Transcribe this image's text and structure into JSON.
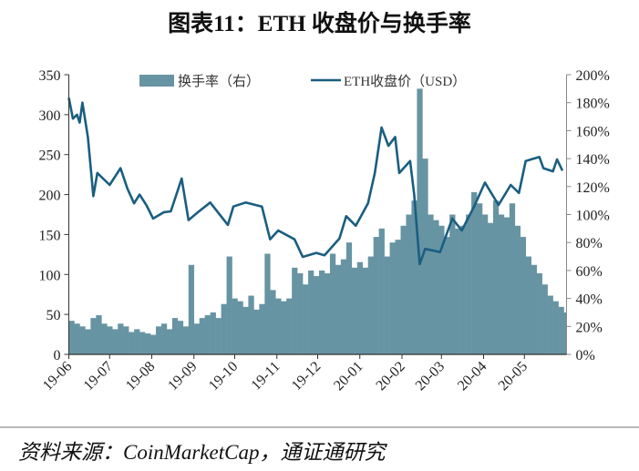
{
  "title": "图表11：ETH 收盘价与换手率",
  "source": "资料来源：CoinMarketCap，通证通研究",
  "colors": {
    "turnover": "#6794a3",
    "price": "#1a5e80",
    "axis": "#333333"
  },
  "chart_data": {
    "type": "bar+line",
    "x_tick_labels": [
      "19-06",
      "19-07",
      "19-08",
      "19-09",
      "19-10",
      "19-11",
      "19-12",
      "20-01",
      "20-02",
      "20-03",
      "20-04",
      "20-05"
    ],
    "x_range": [
      "2019-06-01",
      "2020-06-01"
    ],
    "left_axis": {
      "ticks": [
        "0",
        "50",
        "100",
        "150",
        "200",
        "250",
        "300",
        "350"
      ],
      "range": [
        0,
        350
      ]
    },
    "right_axis": {
      "ticks": [
        "0%",
        "20%",
        "40%",
        "60%",
        "80%",
        "100%",
        "120%",
        "140%",
        "160%",
        "180%",
        "200%"
      ],
      "range": [
        0,
        200
      ]
    },
    "legend": [
      "换手率（右）",
      "ETH收盘价（USD）"
    ],
    "legend_position": "top",
    "grid": false,
    "series": [
      {
        "name": "换手率（右）",
        "type": "bar",
        "axis": "right",
        "unit": "%",
        "points": [
          [
            "2019-06-01",
            24
          ],
          [
            "2019-06-05",
            22
          ],
          [
            "2019-06-09",
            20
          ],
          [
            "2019-06-13",
            18
          ],
          [
            "2019-06-17",
            26
          ],
          [
            "2019-06-21",
            28
          ],
          [
            "2019-06-25",
            22
          ],
          [
            "2019-06-29",
            20
          ],
          [
            "2019-07-03",
            18
          ],
          [
            "2019-07-07",
            22
          ],
          [
            "2019-07-11",
            20
          ],
          [
            "2019-07-15",
            16
          ],
          [
            "2019-07-19",
            18
          ],
          [
            "2019-07-23",
            16
          ],
          [
            "2019-07-27",
            15
          ],
          [
            "2019-07-31",
            14
          ],
          [
            "2019-08-04",
            20
          ],
          [
            "2019-08-08",
            22
          ],
          [
            "2019-08-12",
            18
          ],
          [
            "2019-08-16",
            26
          ],
          [
            "2019-08-20",
            24
          ],
          [
            "2019-08-24",
            20
          ],
          [
            "2019-08-28",
            64
          ],
          [
            "2019-09-01",
            22
          ],
          [
            "2019-09-05",
            26
          ],
          [
            "2019-09-09",
            28
          ],
          [
            "2019-09-13",
            30
          ],
          [
            "2019-09-17",
            26
          ],
          [
            "2019-09-21",
            36
          ],
          [
            "2019-09-25",
            70
          ],
          [
            "2019-09-29",
            40
          ],
          [
            "2019-10-03",
            38
          ],
          [
            "2019-10-07",
            34
          ],
          [
            "2019-10-11",
            42
          ],
          [
            "2019-10-15",
            32
          ],
          [
            "2019-10-19",
            36
          ],
          [
            "2019-10-23",
            72
          ],
          [
            "2019-10-27",
            46
          ],
          [
            "2019-10-31",
            40
          ],
          [
            "2019-11-04",
            38
          ],
          [
            "2019-11-08",
            40
          ],
          [
            "2019-11-12",
            62
          ],
          [
            "2019-11-16",
            58
          ],
          [
            "2019-11-20",
            50
          ],
          [
            "2019-11-24",
            60
          ],
          [
            "2019-11-28",
            56
          ],
          [
            "2019-12-02",
            60
          ],
          [
            "2019-12-06",
            58
          ],
          [
            "2019-12-10",
            72
          ],
          [
            "2019-12-14",
            64
          ],
          [
            "2019-12-18",
            68
          ],
          [
            "2019-12-22",
            80
          ],
          [
            "2019-12-26",
            62
          ],
          [
            "2019-12-30",
            66
          ],
          [
            "2020-01-03",
            62
          ],
          [
            "2020-01-07",
            70
          ],
          [
            "2020-01-11",
            84
          ],
          [
            "2020-01-15",
            90
          ],
          [
            "2020-01-19",
            70
          ],
          [
            "2020-01-23",
            80
          ],
          [
            "2020-01-27",
            82
          ],
          [
            "2020-01-31",
            92
          ],
          [
            "2020-02-04",
            100
          ],
          [
            "2020-02-08",
            110
          ],
          [
            "2020-02-12",
            190
          ],
          [
            "2020-02-16",
            140
          ],
          [
            "2020-02-20",
            100
          ],
          [
            "2020-02-24",
            96
          ],
          [
            "2020-02-28",
            92
          ],
          [
            "2020-03-03",
            84
          ],
          [
            "2020-03-07",
            100
          ],
          [
            "2020-03-11",
            90
          ],
          [
            "2020-03-15",
            92
          ],
          [
            "2020-03-19",
            100
          ],
          [
            "2020-03-23",
            116
          ],
          [
            "2020-03-27",
            108
          ],
          [
            "2020-03-31",
            100
          ],
          [
            "2020-04-04",
            94
          ],
          [
            "2020-04-08",
            110
          ],
          [
            "2020-04-12",
            100
          ],
          [
            "2020-04-16",
            98
          ],
          [
            "2020-04-20",
            108
          ],
          [
            "2020-04-24",
            92
          ],
          [
            "2020-04-28",
            84
          ],
          [
            "2020-05-02",
            70
          ],
          [
            "2020-05-06",
            64
          ],
          [
            "2020-05-10",
            58
          ],
          [
            "2020-05-14",
            50
          ],
          [
            "2020-05-18",
            42
          ],
          [
            "2020-05-22",
            38
          ],
          [
            "2020-05-26",
            34
          ],
          [
            "2020-05-30",
            30
          ]
        ]
      },
      {
        "name": "ETH收盘价（USD）",
        "type": "line",
        "axis": "left",
        "unit": "USD",
        "points": [
          [
            "2019-06-01",
            321
          ],
          [
            "2019-06-04",
            295
          ],
          [
            "2019-06-07",
            300
          ],
          [
            "2019-06-09",
            290
          ],
          [
            "2019-06-11",
            315
          ],
          [
            "2019-06-15",
            272
          ],
          [
            "2019-06-19",
            198
          ],
          [
            "2019-06-22",
            227
          ],
          [
            "2019-07-01",
            212
          ],
          [
            "2019-07-09",
            233
          ],
          [
            "2019-07-14",
            208
          ],
          [
            "2019-07-19",
            189
          ],
          [
            "2019-07-23",
            200
          ],
          [
            "2019-07-28",
            187
          ],
          [
            "2019-08-02",
            170
          ],
          [
            "2019-08-10",
            178
          ],
          [
            "2019-08-15",
            179
          ],
          [
            "2019-08-23",
            220
          ],
          [
            "2019-08-28",
            168
          ],
          [
            "2019-09-04",
            178
          ],
          [
            "2019-09-13",
            190
          ],
          [
            "2019-09-26",
            162
          ],
          [
            "2019-09-30",
            185
          ],
          [
            "2019-10-09",
            190
          ],
          [
            "2019-10-21",
            185
          ],
          [
            "2019-10-27",
            144
          ],
          [
            "2019-11-02",
            155
          ],
          [
            "2019-11-14",
            144
          ],
          [
            "2019-11-20",
            122
          ],
          [
            "2019-11-30",
            127
          ],
          [
            "2019-12-06",
            124
          ],
          [
            "2019-12-17",
            145
          ],
          [
            "2019-12-22",
            173
          ],
          [
            "2019-12-29",
            161
          ],
          [
            "2020-01-07",
            189
          ],
          [
            "2020-01-12",
            227
          ],
          [
            "2020-01-17",
            284
          ],
          [
            "2020-01-22",
            261
          ],
          [
            "2020-01-27",
            272
          ],
          [
            "2020-01-30",
            227
          ],
          [
            "2020-02-07",
            242
          ],
          [
            "2020-02-10",
            200
          ],
          [
            "2020-02-14",
            113
          ],
          [
            "2020-02-18",
            132
          ],
          [
            "2020-02-29",
            128
          ],
          [
            "2020-03-09",
            170
          ],
          [
            "2020-03-16",
            155
          ],
          [
            "2020-03-25",
            185
          ],
          [
            "2020-04-02",
            215
          ],
          [
            "2020-04-12",
            187
          ],
          [
            "2020-04-21",
            212
          ],
          [
            "2020-04-27",
            202
          ],
          [
            "2020-05-02",
            242
          ],
          [
            "2020-05-12",
            247
          ],
          [
            "2020-05-15",
            233
          ],
          [
            "2020-05-22",
            229
          ],
          [
            "2020-05-25",
            244
          ],
          [
            "2020-05-29",
            230
          ]
        ]
      }
    ]
  }
}
